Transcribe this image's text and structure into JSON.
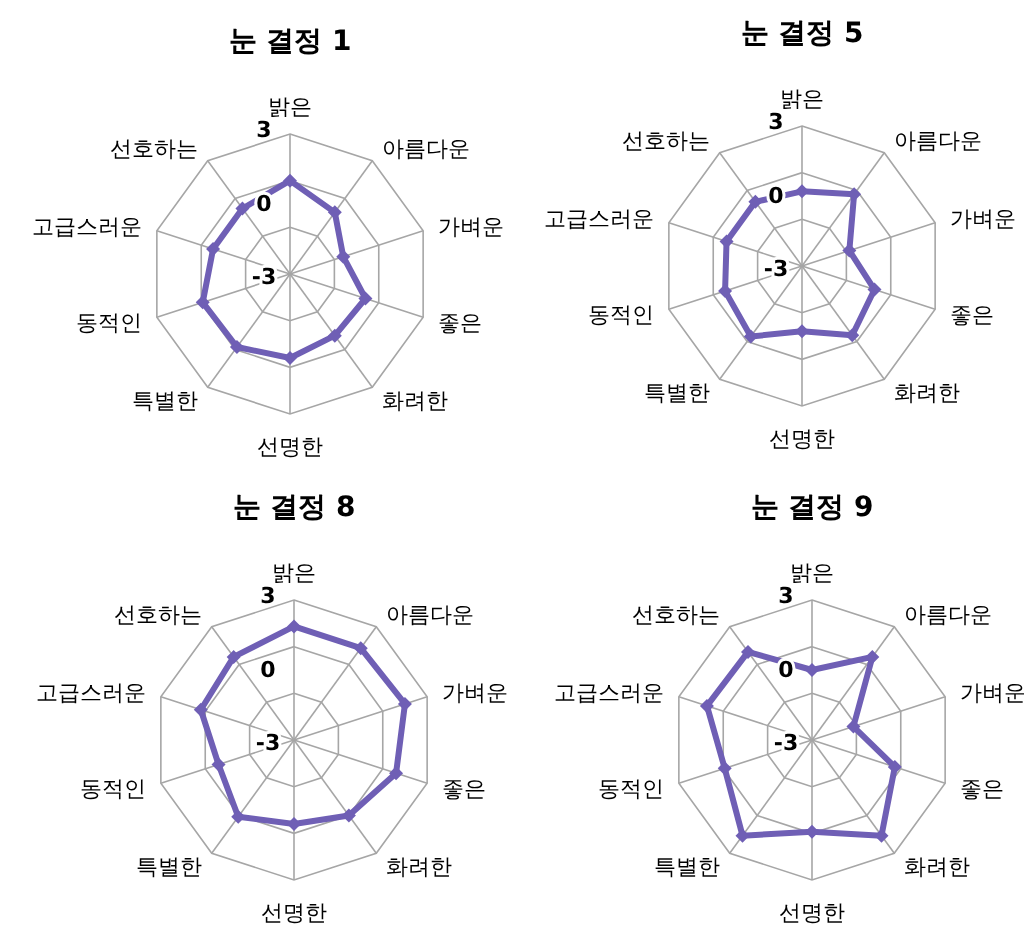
{
  "chart_data": [
    {
      "type": "radar",
      "title": "눈 결정 1",
      "categories": [
        "밝은",
        "아름다운",
        "가벼운",
        "좋은",
        "화려한",
        "선명한",
        "특별한",
        "동적인",
        "고급스러운",
        "선호하는"
      ],
      "ylim": [
        -6,
        3
      ],
      "yticks": [
        -3,
        0,
        3
      ],
      "grid": true,
      "marker": "diamond",
      "series": [
        {
          "color": "#6f5fb5",
          "values": [
            0.0,
            -1.1,
            -2.4,
            -0.9,
            -1.1,
            -0.6,
            -0.2,
            -0.1,
            -0.8,
            -0.8
          ]
        }
      ]
    },
    {
      "type": "radar",
      "title": "눈 결정 5",
      "categories": [
        "밝은",
        "아름다운",
        "가벼운",
        "좋은",
        "화려한",
        "선명한",
        "특별한",
        "동적인",
        "고급스러운",
        "선호하는"
      ],
      "ylim": [
        -6,
        3
      ],
      "yticks": [
        -3,
        0,
        3
      ],
      "grid": true,
      "marker": "diamond",
      "series": [
        {
          "color": "#6f5fb5",
          "values": [
            -1.2,
            -0.3,
            -2.8,
            -1.1,
            -0.5,
            -1.8,
            -0.4,
            -0.8,
            -0.9,
            -0.9
          ]
        }
      ]
    },
    {
      "type": "radar",
      "title": "눈 결정 8",
      "categories": [
        "밝은",
        "아름다운",
        "가벼운",
        "좋은",
        "화려한",
        "선명한",
        "특별한",
        "동적인",
        "고급스러운",
        "선호하는"
      ],
      "ylim": [
        -6,
        3
      ],
      "yticks": [
        -3,
        0,
        3
      ],
      "grid": true,
      "marker": "diamond",
      "series": [
        {
          "color": "#6f5fb5",
          "values": [
            1.3,
            1.3,
            1.5,
            0.9,
            0.0,
            -0.6,
            0.1,
            -0.9,
            0.3,
            0.6
          ]
        }
      ]
    },
    {
      "type": "radar",
      "title": "눈 결정 9",
      "categories": [
        "밝은",
        "아름다운",
        "가벼운",
        "좋은",
        "화려한",
        "선명한",
        "특별한",
        "동적인",
        "고급스러운",
        "선호하는"
      ],
      "ylim": [
        -6,
        3
      ],
      "yticks": [
        -3,
        0,
        3
      ],
      "grid": true,
      "marker": "diamond",
      "series": [
        {
          "color": "#6f5fb5",
          "values": [
            -1.5,
            0.6,
            -3.2,
            -0.4,
            1.6,
            -0.1,
            1.6,
            -0.1,
            1.1,
            1.0
          ]
        }
      ]
    }
  ]
}
